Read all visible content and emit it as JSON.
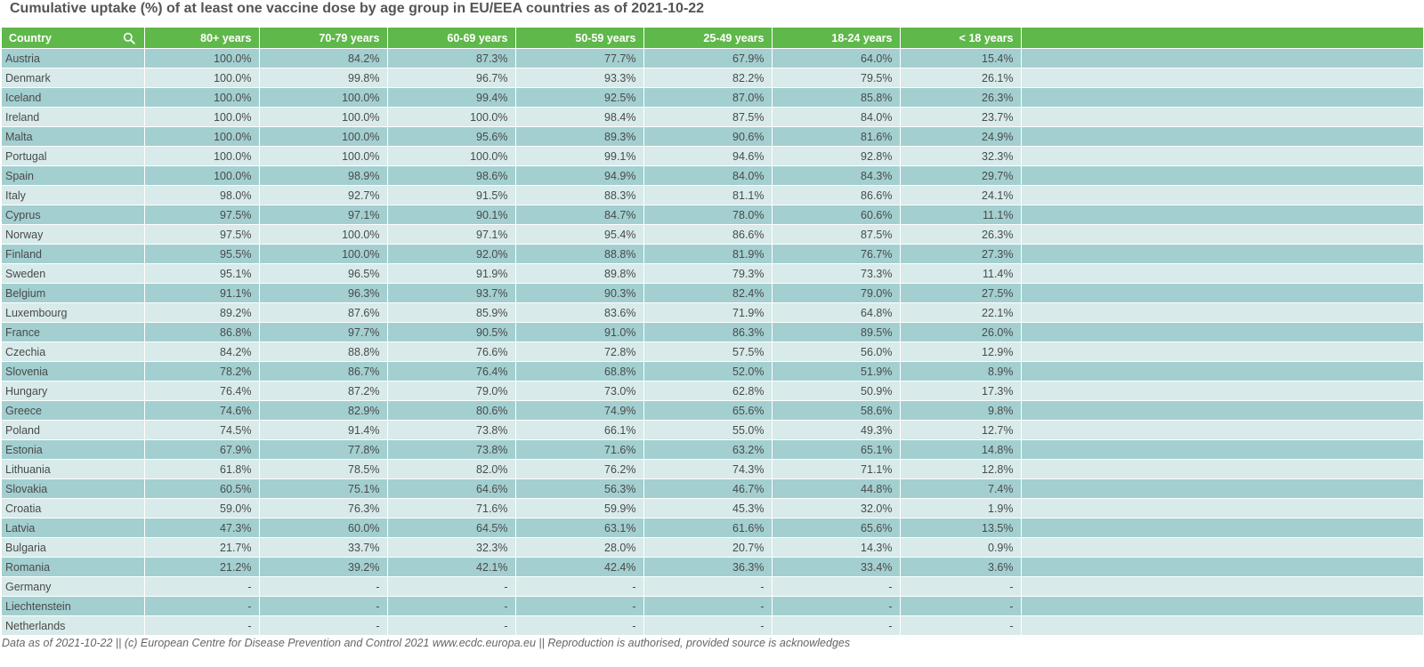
{
  "title": "Cumulative uptake (%) of at least one vaccine dose by age group in EU/EEA countries as of 2021-10-22",
  "footer": "Data as of 2021-10-22 || (c) European Centre for Disease Prevention and Control 2021 www.ecdc.europa.eu || Reproduction is authorised, provided source is acknowledges",
  "colors": {
    "header": "#5fb84a",
    "row_odd": "#a3cfd0",
    "row_even": "#d8eaea"
  },
  "header_icon": "search-icon",
  "chart_data": {
    "type": "table",
    "title": "Cumulative uptake (%) of at least one vaccine dose by age group in EU/EEA countries as of 2021-10-22",
    "columns": [
      "Country",
      "80+ years",
      "70-79 years",
      "60-69 years",
      "50-59 years",
      "25-49 years",
      "18-24 years",
      "< 18 years"
    ],
    "rows": [
      [
        "Austria",
        "100.0%",
        "84.2%",
        "87.3%",
        "77.7%",
        "67.9%",
        "64.0%",
        "15.4%"
      ],
      [
        "Denmark",
        "100.0%",
        "99.8%",
        "96.7%",
        "93.3%",
        "82.2%",
        "79.5%",
        "26.1%"
      ],
      [
        "Iceland",
        "100.0%",
        "100.0%",
        "99.4%",
        "92.5%",
        "87.0%",
        "85.8%",
        "26.3%"
      ],
      [
        "Ireland",
        "100.0%",
        "100.0%",
        "100.0%",
        "98.4%",
        "87.5%",
        "84.0%",
        "23.7%"
      ],
      [
        "Malta",
        "100.0%",
        "100.0%",
        "95.6%",
        "89.3%",
        "90.6%",
        "81.6%",
        "24.9%"
      ],
      [
        "Portugal",
        "100.0%",
        "100.0%",
        "100.0%",
        "99.1%",
        "94.6%",
        "92.8%",
        "32.3%"
      ],
      [
        "Spain",
        "100.0%",
        "98.9%",
        "98.6%",
        "94.9%",
        "84.0%",
        "84.3%",
        "29.7%"
      ],
      [
        "Italy",
        "98.0%",
        "92.7%",
        "91.5%",
        "88.3%",
        "81.1%",
        "86.6%",
        "24.1%"
      ],
      [
        "Cyprus",
        "97.5%",
        "97.1%",
        "90.1%",
        "84.7%",
        "78.0%",
        "60.6%",
        "11.1%"
      ],
      [
        "Norway",
        "97.5%",
        "100.0%",
        "97.1%",
        "95.4%",
        "86.6%",
        "87.5%",
        "26.3%"
      ],
      [
        "Finland",
        "95.5%",
        "100.0%",
        "92.0%",
        "88.8%",
        "81.9%",
        "76.7%",
        "27.3%"
      ],
      [
        "Sweden",
        "95.1%",
        "96.5%",
        "91.9%",
        "89.8%",
        "79.3%",
        "73.3%",
        "11.4%"
      ],
      [
        "Belgium",
        "91.1%",
        "96.3%",
        "93.7%",
        "90.3%",
        "82.4%",
        "79.0%",
        "27.5%"
      ],
      [
        "Luxembourg",
        "89.2%",
        "87.6%",
        "85.9%",
        "83.6%",
        "71.9%",
        "64.8%",
        "22.1%"
      ],
      [
        "France",
        "86.8%",
        "97.7%",
        "90.5%",
        "91.0%",
        "86.3%",
        "89.5%",
        "26.0%"
      ],
      [
        "Czechia",
        "84.2%",
        "88.8%",
        "76.6%",
        "72.8%",
        "57.5%",
        "56.0%",
        "12.9%"
      ],
      [
        "Slovenia",
        "78.2%",
        "86.7%",
        "76.4%",
        "68.8%",
        "52.0%",
        "51.9%",
        "8.9%"
      ],
      [
        "Hungary",
        "76.4%",
        "87.2%",
        "79.0%",
        "73.0%",
        "62.8%",
        "50.9%",
        "17.3%"
      ],
      [
        "Greece",
        "74.6%",
        "82.9%",
        "80.6%",
        "74.9%",
        "65.6%",
        "58.6%",
        "9.8%"
      ],
      [
        "Poland",
        "74.5%",
        "91.4%",
        "73.8%",
        "66.1%",
        "55.0%",
        "49.3%",
        "12.7%"
      ],
      [
        "Estonia",
        "67.9%",
        "77.8%",
        "73.8%",
        "71.6%",
        "63.2%",
        "65.1%",
        "14.8%"
      ],
      [
        "Lithuania",
        "61.8%",
        "78.5%",
        "82.0%",
        "76.2%",
        "74.3%",
        "71.1%",
        "12.8%"
      ],
      [
        "Slovakia",
        "60.5%",
        "75.1%",
        "64.6%",
        "56.3%",
        "46.7%",
        "44.8%",
        "7.4%"
      ],
      [
        "Croatia",
        "59.0%",
        "76.3%",
        "71.6%",
        "59.9%",
        "45.3%",
        "32.0%",
        "1.9%"
      ],
      [
        "Latvia",
        "47.3%",
        "60.0%",
        "64.5%",
        "63.1%",
        "61.6%",
        "65.6%",
        "13.5%"
      ],
      [
        "Bulgaria",
        "21.7%",
        "33.7%",
        "32.3%",
        "28.0%",
        "20.7%",
        "14.3%",
        "0.9%"
      ],
      [
        "Romania",
        "21.2%",
        "39.2%",
        "42.1%",
        "42.4%",
        "36.3%",
        "33.4%",
        "3.6%"
      ],
      [
        "Germany",
        "-",
        "-",
        "-",
        "-",
        "-",
        "-",
        "-"
      ],
      [
        "Liechtenstein",
        "-",
        "-",
        "-",
        "-",
        "-",
        "-",
        "-"
      ],
      [
        "Netherlands",
        "-",
        "-",
        "-",
        "-",
        "-",
        "-",
        "-"
      ]
    ]
  }
}
